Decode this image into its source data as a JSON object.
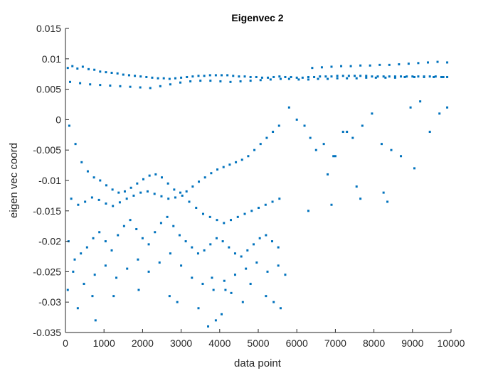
{
  "chart_data": {
    "type": "scatter",
    "title": "Eigenvec 2",
    "xlabel": "data point",
    "ylabel": "eigen vec coord",
    "xlim": [
      0,
      10000
    ],
    "ylim": [
      -0.035,
      0.015
    ],
    "x_ticks": [
      0,
      1000,
      2000,
      3000,
      4000,
      5000,
      6000,
      7000,
      8000,
      9000,
      10000
    ],
    "x_tick_labels": [
      "0",
      "1000",
      "2000",
      "3000",
      "4000",
      "5000",
      "6000",
      "7000",
      "8000",
      "9000",
      "10000"
    ],
    "y_ticks": [
      -0.035,
      -0.03,
      -0.025,
      -0.02,
      -0.015,
      -0.01,
      -0.005,
      0,
      0.005,
      0.01,
      0.015
    ],
    "y_tick_labels": [
      "-0.035",
      "-0.03",
      "-0.025",
      "-0.02",
      "-0.015",
      "-0.01",
      "-0.005",
      "0",
      "0.005",
      "0.01",
      "0.015"
    ],
    "grid": false,
    "legend": "none",
    "marker_color": "#0072BD",
    "series": [
      {
        "x": [
          60,
          180,
          310,
          450,
          600,
          750,
          900,
          1050,
          1200,
          1350,
          1500,
          1650,
          1800,
          1950,
          2100,
          2250,
          2400,
          2550,
          2700,
          2850,
          3000,
          3150,
          3300,
          3450,
          3600,
          3750,
          3900,
          4050,
          4200,
          4350,
          4500,
          4650,
          4800,
          4950,
          5100,
          5250,
          5400,
          5550,
          5700,
          5850,
          6000,
          6150,
          6300,
          6450,
          6600,
          6750,
          6900,
          7050,
          7200,
          7350,
          7500,
          7650,
          7800,
          7950,
          8100,
          8250,
          8400,
          8550,
          8700,
          8850,
          9000,
          9150,
          9300,
          9450,
          9600,
          9750,
          9900,
          120,
          380,
          640,
          900,
          1160,
          1420,
          1680,
          1940,
          2200,
          2460,
          2720,
          2980,
          3240,
          3500,
          3760,
          4020,
          4280,
          4540,
          4800,
          5060,
          5320,
          5580,
          5800,
          6050,
          6300,
          6550,
          6800,
          7050,
          7300,
          7550,
          7800,
          8050,
          8300,
          8550,
          8800,
          9050,
          9300,
          9550,
          9800,
          6400,
          6650,
          6900,
          7150,
          7400,
          7650,
          7900,
          8150,
          8400,
          8650,
          8900,
          9150,
          9400,
          9650,
          9900,
          100,
          260,
          420,
          580,
          740,
          900,
          1060,
          1220,
          1380,
          1540,
          1700,
          1860,
          2020,
          2180,
          2340,
          2500,
          2660,
          2820,
          2980,
          3140,
          3300,
          3460,
          3620,
          3780,
          3940,
          4100,
          4260,
          4420,
          4580,
          4740,
          4900,
          5060,
          5220,
          5380,
          5540,
          150,
          330,
          510,
          690,
          870,
          1050,
          1230,
          1410,
          1590,
          1770,
          1950,
          2130,
          2310,
          2490,
          2670,
          2850,
          3030,
          3210,
          3390,
          3570,
          3750,
          3930,
          4110,
          4290,
          4470,
          4650,
          4830,
          5010,
          5190,
          5370,
          5550,
          80,
          240,
          400,
          560,
          720,
          880,
          1040,
          1200,
          1360,
          1520,
          1680,
          1840,
          2000,
          2160,
          2320,
          2480,
          2640,
          2800,
          2960,
          3120,
          3280,
          3440,
          3600,
          3760,
          3920,
          4080,
          4240,
          4400,
          4560,
          4720,
          4880,
          5040,
          5200,
          5360,
          5520,
          200,
          480,
          760,
          1040,
          1320,
          1600,
          1880,
          2160,
          2440,
          2720,
          3000,
          3280,
          3560,
          3840,
          4120,
          4400,
          4680,
          4960,
          5240,
          5520,
          5700,
          5800,
          6000,
          6200,
          6350,
          6500,
          6700,
          6950,
          7200,
          7450,
          7700,
          7950,
          8200,
          8450,
          8700,
          8950,
          9200,
          9450,
          9700,
          9900,
          6300,
          6800,
          7550,
          7650,
          8250,
          8350,
          9050,
          7000,
          7300,
          6900,
          60,
          320,
          780,
          1250,
          2900,
          3450,
          3900,
          4150,
          4600,
          5200,
          5580,
          3700,
          4050,
          4300,
          4800,
          5400,
          3800,
          2700,
          1900,
          700
        ],
        "y": [
          0.0085,
          0.0088,
          0.0084,
          0.0087,
          0.0083,
          0.0082,
          0.0079,
          0.0078,
          0.0077,
          0.0076,
          0.0074,
          0.0073,
          0.0072,
          0.0071,
          0.007,
          0.0069,
          0.0068,
          0.0068,
          0.0067,
          0.0068,
          0.0069,
          0.007,
          0.0071,
          0.0072,
          0.0072,
          0.0073,
          0.0073,
          0.0073,
          0.0073,
          0.0072,
          0.0071,
          0.0071,
          0.007,
          0.007,
          0.0069,
          0.0069,
          0.007,
          0.0071,
          0.007,
          0.007,
          0.0069,
          0.0069,
          0.007,
          0.007,
          0.0071,
          0.0071,
          0.0071,
          0.0072,
          0.0072,
          0.0072,
          0.0072,
          0.0072,
          0.0072,
          0.0071,
          0.0071,
          0.0071,
          0.0071,
          0.0071,
          0.0071,
          0.0071,
          0.0071,
          0.0071,
          0.0071,
          0.0071,
          0.0071,
          0.007,
          0.007,
          0.0062,
          0.006,
          0.0058,
          0.0057,
          0.0056,
          0.0055,
          0.0054,
          0.0053,
          0.0052,
          0.0055,
          0.0058,
          0.0061,
          0.0063,
          0.0064,
          0.0064,
          0.0063,
          0.0062,
          0.0063,
          0.0064,
          0.0065,
          0.0066,
          0.0067,
          0.0067,
          0.0066,
          0.0066,
          0.0067,
          0.0067,
          0.0068,
          0.0068,
          0.0068,
          0.0069,
          0.0069,
          0.0069,
          0.0069,
          0.007,
          0.007,
          0.007,
          0.007,
          0.007,
          0.0085,
          0.0086,
          0.0087,
          0.0088,
          0.0088,
          0.0089,
          0.0089,
          0.009,
          0.009,
          0.0091,
          0.0092,
          0.0093,
          0.0094,
          0.0095,
          0.0094,
          -0.001,
          -0.004,
          -0.007,
          -0.0085,
          -0.0095,
          -0.01,
          -0.0108,
          -0.0115,
          -0.012,
          -0.0118,
          -0.0112,
          -0.0105,
          -0.0098,
          -0.0092,
          -0.009,
          -0.0095,
          -0.0105,
          -0.0115,
          -0.012,
          -0.0118,
          -0.011,
          -0.0102,
          -0.0095,
          -0.0088,
          -0.0082,
          -0.0078,
          -0.0074,
          -0.007,
          -0.0066,
          -0.006,
          -0.005,
          -0.004,
          -0.003,
          -0.002,
          -0.001,
          -0.013,
          -0.014,
          -0.0135,
          -0.0128,
          -0.0132,
          -0.0138,
          -0.0142,
          -0.0136,
          -0.013,
          -0.0125,
          -0.012,
          -0.0118,
          -0.0122,
          -0.0126,
          -0.013,
          -0.0128,
          -0.0125,
          -0.0135,
          -0.0145,
          -0.0155,
          -0.016,
          -0.0165,
          -0.017,
          -0.0165,
          -0.016,
          -0.0155,
          -0.015,
          -0.0145,
          -0.014,
          -0.0135,
          -0.013,
          -0.02,
          -0.023,
          -0.022,
          -0.021,
          -0.0195,
          -0.0185,
          -0.02,
          -0.0215,
          -0.019,
          -0.0175,
          -0.0165,
          -0.018,
          -0.0195,
          -0.0205,
          -0.0185,
          -0.017,
          -0.016,
          -0.0175,
          -0.019,
          -0.02,
          -0.021,
          -0.022,
          -0.0215,
          -0.0205,
          -0.0195,
          -0.02,
          -0.021,
          -0.022,
          -0.0225,
          -0.0215,
          -0.0205,
          -0.0195,
          -0.019,
          -0.02,
          -0.021,
          -0.025,
          -0.027,
          -0.0255,
          -0.024,
          -0.026,
          -0.0245,
          -0.023,
          -0.025,
          -0.0235,
          -0.022,
          -0.024,
          -0.026,
          -0.027,
          -0.028,
          -0.0265,
          -0.0255,
          -0.0245,
          -0.0235,
          -0.025,
          -0.024,
          -0.0255,
          0.002,
          0.0,
          -0.001,
          -0.003,
          -0.005,
          -0.004,
          -0.006,
          -0.002,
          -0.003,
          -0.001,
          0.001,
          -0.004,
          -0.005,
          -0.006,
          0.002,
          0.003,
          -0.002,
          0.001,
          0.002,
          -0.015,
          -0.009,
          -0.011,
          -0.013,
          -0.012,
          -0.0135,
          -0.008,
          -0.006,
          -0.002,
          -0.014,
          -0.028,
          -0.031,
          -0.033,
          -0.029,
          -0.03,
          -0.031,
          -0.033,
          -0.028,
          -0.03,
          -0.029,
          -0.031,
          -0.034,
          -0.032,
          -0.0285,
          -0.027,
          -0.03,
          -0.026,
          -0.029,
          -0.028,
          -0.029
        ]
      }
    ]
  }
}
